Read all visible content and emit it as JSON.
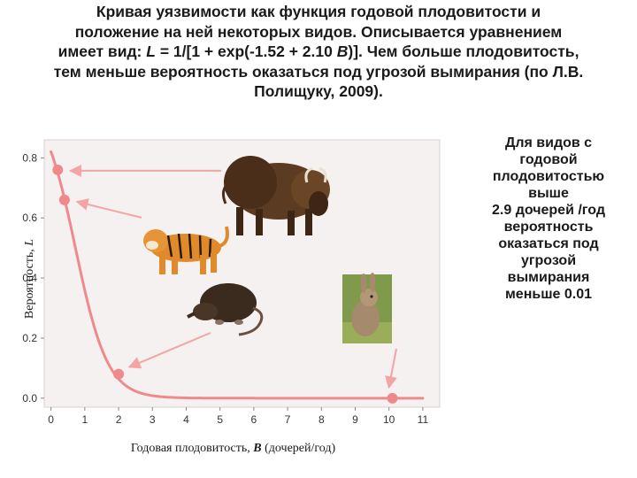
{
  "title": {
    "lines": [
      "Кривая уязвимости как функция годовой плодовитости и",
      "положение на ней некоторых видов. Описывается уравнением",
      "имеет вид: L = 1/[1 + exp(-1.52 + 2.10 B)]. Чем больше плодовитость,",
      "тем меньше вероятность оказаться под угрозой вымирания (по Л.В.",
      "Полищуку, 2009)."
    ]
  },
  "side_note": {
    "lines": [
      "Для видов с",
      "годовой",
      "плодовитостью",
      "выше",
      "2.9 дочерей /год",
      "вероятность",
      "оказаться под",
      "угрозой",
      "вымирания",
      "меньше 0.01"
    ]
  },
  "chart_data": {
    "type": "line",
    "title": "",
    "xlabel_prefix": "Годовая плодовитость, ",
    "xlabel_var": "B",
    "xlabel_suffix": " (дочерей/год)",
    "ylabel_prefix": "Вероятность, ",
    "ylabel_var": "L",
    "xlim": [
      -0.2,
      11.5
    ],
    "ylim": [
      -0.03,
      0.86
    ],
    "x_ticks": [
      0,
      1,
      2,
      3,
      4,
      5,
      6,
      7,
      8,
      9,
      10,
      11
    ],
    "y_ticks": [
      0.0,
      0.2,
      0.4,
      0.6,
      0.8
    ],
    "y_tick_labels": [
      "0.0",
      "0.2",
      "0.4",
      "0.6",
      "0.8"
    ],
    "curve": {
      "equation": "L = 1/[1 + exp(-1.52 + 2.10 B)]",
      "a": -1.52,
      "b": 2.1,
      "x_range": [
        0,
        11
      ],
      "color": "#f08a8a"
    },
    "points": [
      {
        "species": "bison",
        "x": 0.2,
        "y": 0.76
      },
      {
        "species": "tiger",
        "x": 0.4,
        "y": 0.66
      },
      {
        "species": "shrew",
        "x": 2.0,
        "y": 0.08
      },
      {
        "species": "rabbit",
        "x": 10.1,
        "y": 0.0
      }
    ],
    "grid": false,
    "legend": "none",
    "colors": {
      "plot_background": "#f5f1f0",
      "curve": "#f08a8a",
      "points": "#f08a8a",
      "arrows": "#f4a4a4"
    }
  }
}
